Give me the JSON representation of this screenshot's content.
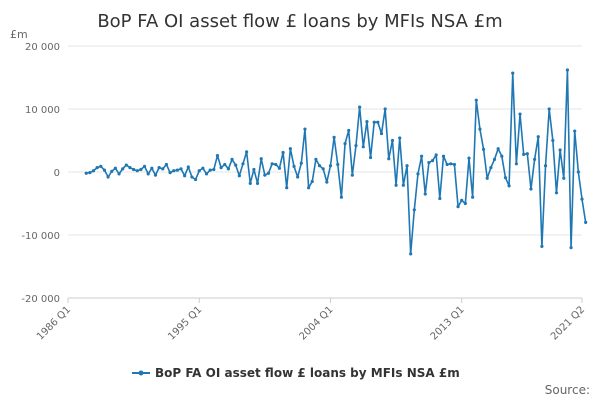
{
  "chart_data": {
    "type": "line",
    "title": "BoP FA OI asset flow £ loans by MFIs NSA £m",
    "unit_label": "£m",
    "ylim": [
      -20000,
      20000
    ],
    "y_ticks": [
      20000,
      10000,
      0,
      -10000,
      -20000
    ],
    "y_tick_labels": [
      "20 000",
      "10 000",
      "0",
      "-10 000",
      "-20 000"
    ],
    "x_ticks": [
      "1986 Q1",
      "1995 Q1",
      "2004 Q1",
      "2013 Q1",
      "2021 Q2"
    ],
    "grid": true,
    "legend_position": "bottom",
    "color": "#1f78b4",
    "source_label": "Source:",
    "series": [
      {
        "name": "BoP FA OI asset flow £ loans by MFIs NSA £m",
        "start": "1987 Q2",
        "values": [
          -200,
          -100,
          200,
          700,
          900,
          300,
          -800,
          100,
          600,
          -300,
          500,
          1100,
          700,
          400,
          200,
          400,
          900,
          -300,
          600,
          -500,
          700,
          500,
          1200,
          -100,
          200,
          300,
          500,
          -600,
          800,
          -800,
          -1200,
          200,
          600,
          -300,
          300,
          400,
          2600,
          700,
          1200,
          500,
          2000,
          1100,
          -600,
          1300,
          3200,
          -1800,
          400,
          -1800,
          2100,
          -500,
          -200,
          1300,
          1200,
          600,
          3100,
          -2500,
          3700,
          900,
          -800,
          1400,
          6800,
          -2500,
          -1500,
          2000,
          1000,
          500,
          -1600,
          1000,
          5500,
          1200,
          -4000,
          4500,
          6600,
          -500,
          4200,
          10300,
          4000,
          8000,
          2300,
          7900,
          7900,
          6100,
          10000,
          2100,
          5000,
          -2100,
          5400,
          -2100,
          1000,
          -13000,
          -6000,
          -300,
          2500,
          -3500,
          1500,
          1800,
          2700,
          -4200,
          2500,
          1200,
          1300,
          1200,
          -5500,
          -4500,
          -5000,
          2200,
          -4000,
          11400,
          6800,
          3600,
          -1000,
          700,
          2000,
          3700,
          2500,
          -900,
          -2200,
          15700,
          1300,
          9200,
          2800,
          2900,
          -2700,
          2000,
          5600,
          -11800,
          1000,
          10000,
          5000,
          -3300,
          3500,
          -1000,
          16200,
          -12000,
          6500,
          0,
          -4300,
          -8000
        ]
      }
    ]
  }
}
